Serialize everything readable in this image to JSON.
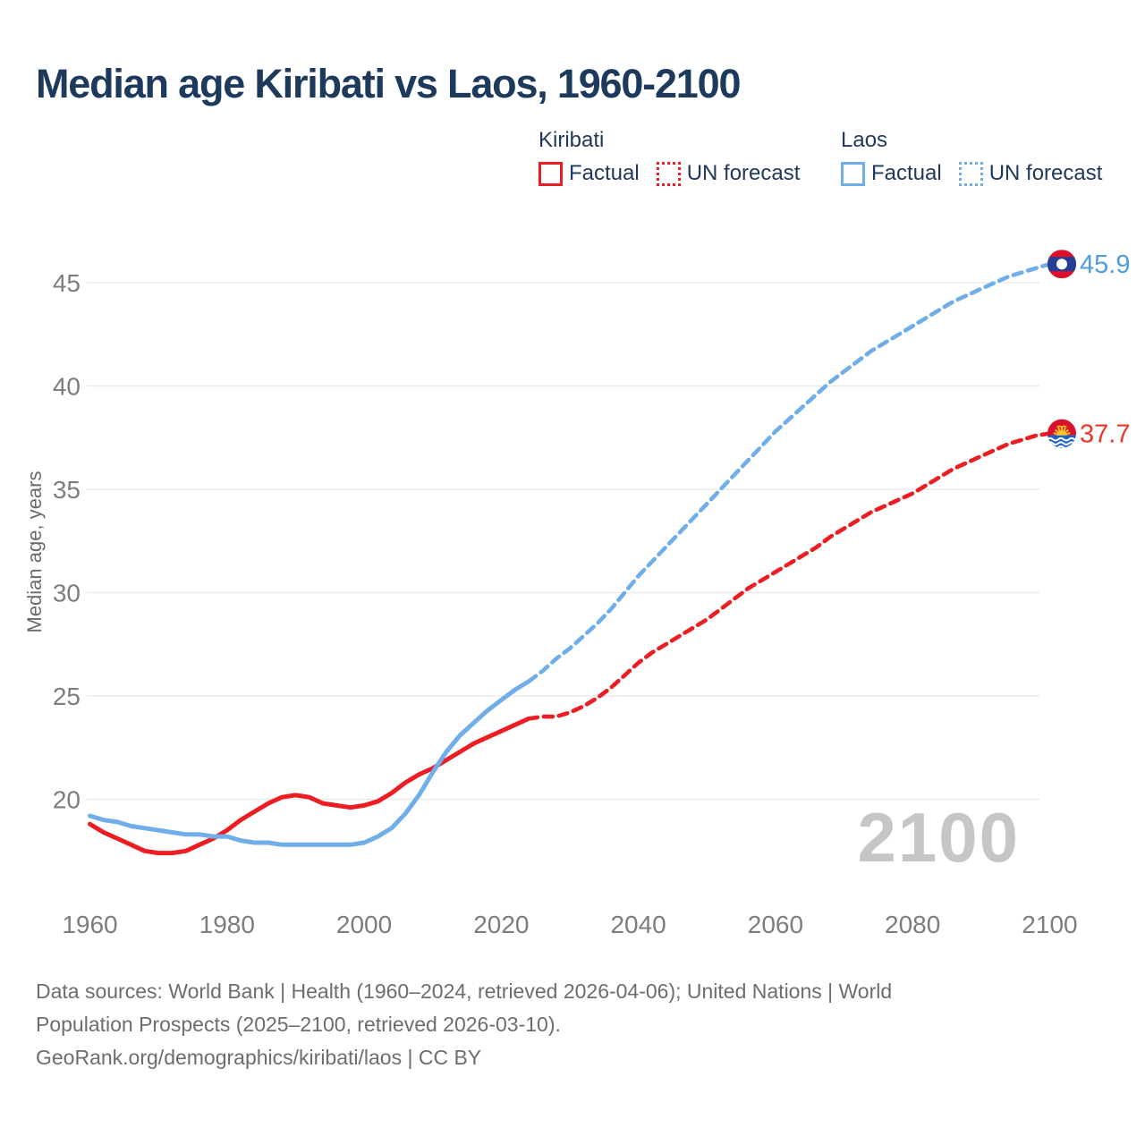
{
  "title": "Median age Kiribati vs Laos, 1960-2100",
  "legend": {
    "groups": [
      {
        "heading": "Kiribati",
        "items": [
          {
            "label": "Factual",
            "swatch": "solid",
            "color": "#ec1d23"
          },
          {
            "label": "UN forecast",
            "swatch": "dotted",
            "color": "#ec1d23"
          }
        ]
      },
      {
        "heading": "Laos",
        "items": [
          {
            "label": "Factual",
            "swatch": "solid",
            "color": "#70aee9"
          },
          {
            "label": "UN forecast",
            "swatch": "dotted",
            "color": "#70aee9"
          }
        ]
      }
    ]
  },
  "chart_data": {
    "type": "line",
    "title": "Median age Kiribati vs Laos, 1960-2100",
    "xlabel": "",
    "ylabel": "Median age, years",
    "xlim": [
      1960,
      2100
    ],
    "ylim": [
      15,
      47
    ],
    "x_ticks": [
      1960,
      1980,
      2000,
      2020,
      2040,
      2060,
      2080,
      2100
    ],
    "y_ticks": [
      20,
      25,
      30,
      35,
      40,
      45
    ],
    "grid": "horizontal",
    "legend_position": "top",
    "watermark": "2100",
    "colors": {
      "kiribati": "#ec1d23",
      "laos": "#70aee9",
      "grid": "#ebebeb",
      "tick_text": "#7d7d7d",
      "axis_title_text": "#6a6a6a",
      "watermark_text": "#c6c6c6"
    },
    "series": [
      {
        "name": "Kiribati Factual",
        "country": "kiribati",
        "color": "#ec1d23",
        "style": "solid",
        "points": [
          [
            1960,
            18.8
          ],
          [
            1962,
            18.4
          ],
          [
            1964,
            18.1
          ],
          [
            1966,
            17.8
          ],
          [
            1968,
            17.5
          ],
          [
            1970,
            17.4
          ],
          [
            1972,
            17.4
          ],
          [
            1974,
            17.5
          ],
          [
            1976,
            17.8
          ],
          [
            1978,
            18.1
          ],
          [
            1980,
            18.5
          ],
          [
            1982,
            19.0
          ],
          [
            1984,
            19.4
          ],
          [
            1986,
            19.8
          ],
          [
            1988,
            20.1
          ],
          [
            1990,
            20.2
          ],
          [
            1992,
            20.1
          ],
          [
            1994,
            19.8
          ],
          [
            1996,
            19.7
          ],
          [
            1998,
            19.6
          ],
          [
            2000,
            19.7
          ],
          [
            2002,
            19.9
          ],
          [
            2004,
            20.3
          ],
          [
            2006,
            20.8
          ],
          [
            2008,
            21.2
          ],
          [
            2010,
            21.5
          ],
          [
            2012,
            21.9
          ],
          [
            2014,
            22.3
          ],
          [
            2016,
            22.7
          ],
          [
            2018,
            23.0
          ],
          [
            2020,
            23.3
          ],
          [
            2022,
            23.6
          ],
          [
            2024,
            23.9
          ]
        ]
      },
      {
        "name": "Kiribati UN forecast",
        "country": "kiribati",
        "color": "#ec1d23",
        "style": "dashed",
        "points": [
          [
            2024,
            23.9
          ],
          [
            2026,
            24.0
          ],
          [
            2028,
            24.0
          ],
          [
            2030,
            24.2
          ],
          [
            2032,
            24.5
          ],
          [
            2034,
            24.9
          ],
          [
            2036,
            25.4
          ],
          [
            2038,
            26.0
          ],
          [
            2040,
            26.6
          ],
          [
            2042,
            27.1
          ],
          [
            2044,
            27.5
          ],
          [
            2046,
            27.9
          ],
          [
            2048,
            28.3
          ],
          [
            2050,
            28.7
          ],
          [
            2052,
            29.2
          ],
          [
            2054,
            29.7
          ],
          [
            2056,
            30.2
          ],
          [
            2058,
            30.6
          ],
          [
            2060,
            31.0
          ],
          [
            2062,
            31.4
          ],
          [
            2064,
            31.8
          ],
          [
            2066,
            32.2
          ],
          [
            2068,
            32.7
          ],
          [
            2070,
            33.1
          ],
          [
            2072,
            33.5
          ],
          [
            2074,
            33.9
          ],
          [
            2076,
            34.2
          ],
          [
            2078,
            34.5
          ],
          [
            2080,
            34.8
          ],
          [
            2082,
            35.2
          ],
          [
            2084,
            35.6
          ],
          [
            2086,
            36.0
          ],
          [
            2088,
            36.3
          ],
          [
            2090,
            36.6
          ],
          [
            2092,
            36.9
          ],
          [
            2094,
            37.2
          ],
          [
            2096,
            37.4
          ],
          [
            2098,
            37.6
          ],
          [
            2100,
            37.7
          ]
        ]
      },
      {
        "name": "Laos Factual",
        "country": "laos",
        "color": "#70aee9",
        "style": "solid",
        "points": [
          [
            1960,
            19.2
          ],
          [
            1962,
            19.0
          ],
          [
            1964,
            18.9
          ],
          [
            1966,
            18.7
          ],
          [
            1968,
            18.6
          ],
          [
            1970,
            18.5
          ],
          [
            1972,
            18.4
          ],
          [
            1974,
            18.3
          ],
          [
            1976,
            18.3
          ],
          [
            1978,
            18.2
          ],
          [
            1980,
            18.2
          ],
          [
            1982,
            18.0
          ],
          [
            1984,
            17.9
          ],
          [
            1986,
            17.9
          ],
          [
            1988,
            17.8
          ],
          [
            1990,
            17.8
          ],
          [
            1992,
            17.8
          ],
          [
            1994,
            17.8
          ],
          [
            1996,
            17.8
          ],
          [
            1998,
            17.8
          ],
          [
            2000,
            17.9
          ],
          [
            2002,
            18.2
          ],
          [
            2004,
            18.6
          ],
          [
            2006,
            19.3
          ],
          [
            2008,
            20.2
          ],
          [
            2010,
            21.3
          ],
          [
            2012,
            22.3
          ],
          [
            2014,
            23.1
          ],
          [
            2016,
            23.7
          ],
          [
            2018,
            24.3
          ],
          [
            2020,
            24.8
          ],
          [
            2022,
            25.3
          ],
          [
            2024,
            25.7
          ]
        ]
      },
      {
        "name": "Laos UN forecast",
        "country": "laos",
        "color": "#70aee9",
        "style": "dashed",
        "points": [
          [
            2024,
            25.7
          ],
          [
            2026,
            26.2
          ],
          [
            2028,
            26.8
          ],
          [
            2030,
            27.3
          ],
          [
            2032,
            27.9
          ],
          [
            2034,
            28.5
          ],
          [
            2036,
            29.2
          ],
          [
            2038,
            30.0
          ],
          [
            2040,
            30.8
          ],
          [
            2042,
            31.5
          ],
          [
            2044,
            32.2
          ],
          [
            2046,
            32.9
          ],
          [
            2048,
            33.6
          ],
          [
            2050,
            34.3
          ],
          [
            2052,
            35.0
          ],
          [
            2054,
            35.7
          ],
          [
            2056,
            36.4
          ],
          [
            2058,
            37.1
          ],
          [
            2060,
            37.8
          ],
          [
            2062,
            38.4
          ],
          [
            2064,
            39.0
          ],
          [
            2066,
            39.6
          ],
          [
            2068,
            40.2
          ],
          [
            2070,
            40.7
          ],
          [
            2072,
            41.2
          ],
          [
            2074,
            41.7
          ],
          [
            2076,
            42.1
          ],
          [
            2078,
            42.5
          ],
          [
            2080,
            42.9
          ],
          [
            2082,
            43.3
          ],
          [
            2084,
            43.7
          ],
          [
            2086,
            44.1
          ],
          [
            2088,
            44.4
          ],
          [
            2090,
            44.7
          ],
          [
            2092,
            45.0
          ],
          [
            2094,
            45.3
          ],
          [
            2096,
            45.5
          ],
          [
            2098,
            45.7
          ],
          [
            2100,
            45.9
          ]
        ]
      }
    ],
    "end_labels": [
      {
        "text": "45.9",
        "value": 45.9,
        "color": "#4f9ddf",
        "flag": "laos"
      },
      {
        "text": "37.7",
        "value": 37.7,
        "color": "#ee3526",
        "flag": "kiribati"
      }
    ]
  },
  "footer": {
    "lines": [
      "Data sources: World Bank | Health (1960–2024, retrieved 2026-04-06); United Nations | World",
      "Population Prospects (2025–2100, retrieved 2026-03-10).",
      "GeoRank.org/demographics/kiribati/laos | CC BY"
    ]
  }
}
